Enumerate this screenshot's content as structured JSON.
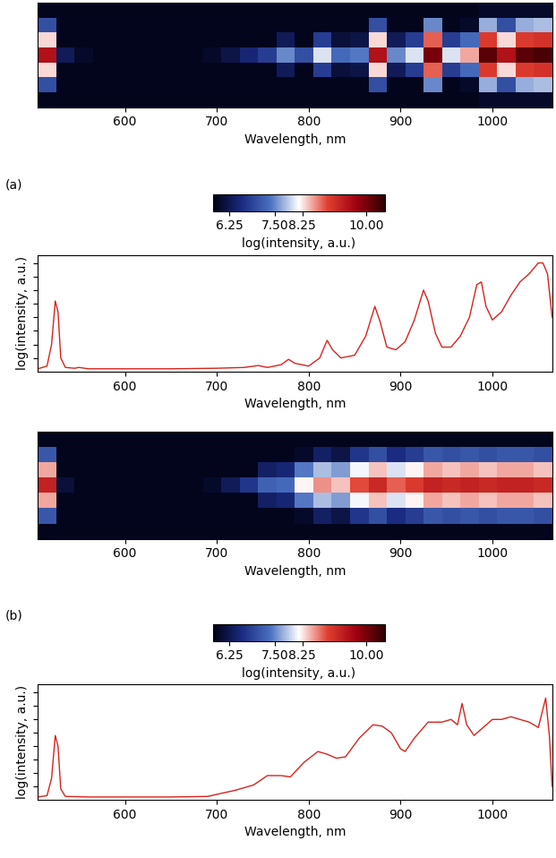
{
  "chart_data": [
    {
      "type": "heatmap",
      "annotation": "(a)",
      "xlabel": "Wavelength, nm",
      "tick_labels": "x",
      "xlim": [
        505,
        1065
      ],
      "xticks": [
        600,
        700,
        800,
        900,
        1000
      ],
      "x_edges": [
        505,
        525,
        545,
        565,
        585,
        605,
        625,
        645,
        665,
        685,
        705,
        725,
        745,
        765,
        785,
        805,
        825,
        845,
        865,
        885,
        905,
        925,
        945,
        965,
        985,
        1005,
        1025,
        1045,
        1065
      ],
      "cells": [
        [
          5.9,
          5.9,
          5.9,
          5.9,
          5.9,
          5.9,
          5.9,
          5.9,
          5.9,
          5.9,
          5.9,
          5.9,
          5.9,
          5.9,
          5.9,
          5.9,
          5.9,
          5.9,
          5.9,
          5.9,
          5.9,
          5.9,
          5.9,
          5.9,
          6.0,
          6.0,
          6.0,
          6.0
        ],
        [
          7.0,
          5.9,
          5.9,
          5.9,
          5.9,
          5.9,
          5.9,
          5.9,
          5.9,
          5.9,
          5.9,
          5.9,
          5.9,
          5.9,
          5.9,
          5.9,
          5.9,
          5.9,
          7.0,
          5.9,
          5.9,
          7.5,
          5.9,
          6.0,
          7.7,
          7.0,
          7.7,
          7.8
        ],
        [
          8.3,
          5.9,
          5.9,
          5.9,
          5.9,
          5.9,
          5.9,
          5.9,
          5.9,
          5.9,
          5.9,
          5.9,
          5.9,
          6.3,
          5.9,
          6.8,
          6.1,
          6.2,
          8.3,
          6.3,
          6.8,
          8.8,
          6.8,
          7.3,
          9.0,
          8.3,
          9.0,
          9.1
        ],
        [
          9.5,
          6.3,
          6.0,
          5.9,
          5.9,
          5.9,
          5.9,
          5.9,
          5.9,
          6.0,
          6.2,
          6.5,
          6.8,
          7.5,
          7.0,
          8.0,
          7.3,
          7.4,
          9.5,
          7.5,
          8.0,
          10.0,
          8.0,
          8.5,
          10.2,
          9.5,
          10.2,
          10.3
        ],
        [
          8.3,
          5.9,
          5.9,
          5.9,
          5.9,
          5.9,
          5.9,
          5.9,
          5.9,
          5.9,
          5.9,
          5.9,
          5.9,
          6.3,
          5.9,
          6.8,
          6.1,
          6.2,
          8.3,
          6.3,
          6.8,
          8.8,
          6.8,
          7.3,
          9.0,
          8.3,
          9.0,
          9.1
        ],
        [
          7.0,
          5.9,
          5.9,
          5.9,
          5.9,
          5.9,
          5.9,
          5.9,
          5.9,
          5.9,
          5.9,
          5.9,
          5.9,
          5.9,
          5.9,
          5.9,
          5.9,
          5.9,
          7.0,
          5.9,
          5.9,
          7.5,
          5.9,
          6.0,
          7.7,
          7.0,
          7.7,
          7.8
        ],
        [
          5.9,
          5.9,
          5.9,
          5.9,
          5.9,
          5.9,
          5.9,
          5.9,
          5.9,
          5.9,
          5.9,
          5.9,
          5.9,
          5.9,
          5.9,
          5.9,
          5.9,
          5.9,
          5.9,
          5.9,
          5.9,
          5.9,
          5.9,
          5.9,
          6.0,
          6.0,
          6.0,
          6.0
        ]
      ],
      "colorbar": {
        "label": "log(intensity, a.u.)",
        "range": [
          5.8,
          10.5
        ],
        "ticks": [
          6.25,
          {
            "value": 7.5,
            "label": "7.50"
          },
          8.25,
          {
            "value": 10,
            "label": "10.00"
          }
        ]
      }
    },
    {
      "type": "line",
      "xlabel": "Wavelength, nm",
      "ylabel": "log(intensity, a.u.)",
      "tick_labels": "x",
      "color": "#d9231c",
      "xlim": [
        505,
        1065
      ],
      "xticks": [
        600,
        700,
        800,
        900,
        1000
      ],
      "ylim": [
        6.0,
        10.3
      ],
      "yticks": [
        6.5,
        7,
        7.5,
        8,
        8.5,
        9,
        9.5,
        10
      ],
      "x": [
        505,
        515,
        520,
        524,
        527,
        530,
        535,
        545,
        550,
        560,
        600,
        650,
        700,
        730,
        745,
        755,
        770,
        778,
        785,
        800,
        812,
        820,
        826,
        835,
        850,
        862,
        872,
        878,
        885,
        895,
        905,
        915,
        925,
        930,
        938,
        945,
        955,
        965,
        975,
        983,
        988,
        993,
        1000,
        1010,
        1020,
        1030,
        1040,
        1050,
        1055,
        1060,
        1065
      ],
      "values": [
        6.1,
        6.2,
        7.0,
        8.6,
        8.2,
        6.5,
        6.15,
        6.12,
        6.15,
        6.1,
        6.1,
        6.1,
        6.12,
        6.15,
        6.22,
        6.15,
        6.25,
        6.45,
        6.3,
        6.2,
        6.5,
        7.15,
        6.8,
        6.5,
        6.6,
        7.3,
        8.4,
        7.8,
        6.9,
        6.8,
        7.1,
        7.9,
        9.0,
        8.6,
        7.4,
        6.9,
        6.9,
        7.3,
        8.0,
        9.2,
        9.3,
        8.4,
        7.9,
        8.2,
        8.8,
        9.3,
        9.6,
        10.0,
        10.0,
        9.6,
        8.0
      ]
    },
    {
      "type": "heatmap",
      "annotation": "(b)",
      "xlabel": "Wavelength, nm",
      "tick_labels": "x",
      "xlim": [
        505,
        1065
      ],
      "xticks": [
        600,
        700,
        800,
        900,
        1000
      ],
      "x_edges": [
        505,
        525,
        545,
        565,
        585,
        605,
        625,
        645,
        665,
        685,
        705,
        725,
        745,
        765,
        785,
        805,
        825,
        845,
        865,
        885,
        905,
        925,
        945,
        965,
        985,
        1005,
        1025,
        1045,
        1065
      ],
      "cells": [
        [
          5.9,
          5.9,
          5.9,
          5.9,
          5.9,
          5.9,
          5.9,
          5.9,
          5.9,
          5.9,
          5.9,
          5.9,
          5.9,
          5.9,
          5.9,
          5.9,
          5.9,
          5.9,
          5.9,
          5.9,
          5.9,
          5.9,
          5.9,
          5.9,
          5.9,
          5.9,
          5.9,
          5.9
        ],
        [
          7.1,
          5.9,
          5.9,
          5.9,
          5.9,
          5.9,
          5.9,
          5.9,
          5.9,
          5.9,
          5.9,
          5.9,
          5.9,
          5.9,
          6.0,
          6.4,
          6.2,
          6.7,
          7.0,
          6.6,
          6.8,
          7.1,
          7.0,
          7.1,
          7.0,
          7.1,
          7.1,
          7.0
        ],
        [
          8.5,
          5.9,
          5.9,
          5.9,
          5.9,
          5.9,
          5.9,
          5.9,
          5.9,
          5.9,
          5.9,
          5.9,
          6.4,
          6.5,
          7.4,
          7.8,
          7.6,
          8.1,
          8.4,
          8.0,
          8.2,
          8.5,
          8.4,
          8.5,
          8.4,
          8.5,
          8.5,
          8.4
        ],
        [
          9.3,
          6.1,
          5.9,
          5.9,
          5.9,
          5.9,
          5.9,
          5.9,
          5.9,
          6.0,
          6.3,
          6.7,
          7.2,
          7.3,
          8.2,
          8.6,
          8.4,
          8.9,
          9.2,
          8.8,
          9.0,
          9.3,
          9.2,
          9.3,
          9.2,
          9.3,
          9.3,
          9.2
        ],
        [
          8.5,
          5.9,
          5.9,
          5.9,
          5.9,
          5.9,
          5.9,
          5.9,
          5.9,
          5.9,
          5.9,
          5.9,
          6.4,
          6.5,
          7.4,
          7.8,
          7.6,
          8.1,
          8.4,
          8.0,
          8.2,
          8.5,
          8.4,
          8.5,
          8.4,
          8.5,
          8.5,
          8.4
        ],
        [
          7.1,
          5.9,
          5.9,
          5.9,
          5.9,
          5.9,
          5.9,
          5.9,
          5.9,
          5.9,
          5.9,
          5.9,
          5.9,
          5.9,
          6.0,
          6.4,
          6.2,
          6.7,
          7.0,
          6.6,
          6.8,
          7.1,
          7.0,
          7.1,
          7.0,
          7.1,
          7.1,
          7.0
        ],
        [
          5.9,
          5.9,
          5.9,
          5.9,
          5.9,
          5.9,
          5.9,
          5.9,
          5.9,
          5.9,
          5.9,
          5.9,
          5.9,
          5.9,
          5.9,
          5.9,
          5.9,
          5.9,
          5.9,
          5.9,
          5.9,
          5.9,
          5.9,
          5.9,
          5.9,
          5.9,
          5.9,
          5.9
        ]
      ],
      "colorbar": {
        "label": "log(intensity, a.u.)",
        "range": [
          5.8,
          10.5
        ],
        "ticks": [
          6.25,
          {
            "value": 7.5,
            "label": "7.50"
          },
          8.25,
          {
            "value": 10,
            "label": "10.00"
          }
        ]
      }
    },
    {
      "type": "line",
      "xlabel": "Wavelength, nm",
      "ylabel": "log(intensity, a.u.)",
      "tick_labels": "x",
      "color": "#d9231c",
      "xlim": [
        505,
        1065
      ],
      "xticks": [
        600,
        700,
        800,
        900,
        1000
      ],
      "ylim": [
        6.0,
        10.3
      ],
      "yticks": [
        6.5,
        7,
        7.5,
        8,
        8.5,
        9,
        9.5,
        10
      ],
      "x": [
        505,
        515,
        520,
        524,
        527,
        530,
        535,
        560,
        650,
        690,
        700,
        720,
        740,
        755,
        770,
        780,
        795,
        810,
        820,
        830,
        840,
        855,
        870,
        880,
        890,
        900,
        905,
        915,
        930,
        945,
        955,
        962,
        967,
        972,
        980,
        990,
        1000,
        1010,
        1020,
        1030,
        1040,
        1050,
        1058,
        1062,
        1065
      ],
      "values": [
        6.1,
        6.15,
        6.8,
        8.4,
        8.0,
        6.4,
        6.12,
        6.1,
        6.1,
        6.12,
        6.2,
        6.35,
        6.55,
        6.9,
        6.9,
        6.85,
        7.4,
        7.8,
        7.7,
        7.55,
        7.6,
        8.3,
        8.8,
        8.75,
        8.5,
        7.9,
        7.8,
        8.3,
        8.9,
        8.9,
        9.0,
        8.8,
        9.6,
        8.8,
        8.4,
        8.7,
        9.0,
        9.0,
        9.1,
        9.0,
        8.9,
        8.7,
        9.8,
        8.4,
        6.5
      ]
    }
  ]
}
